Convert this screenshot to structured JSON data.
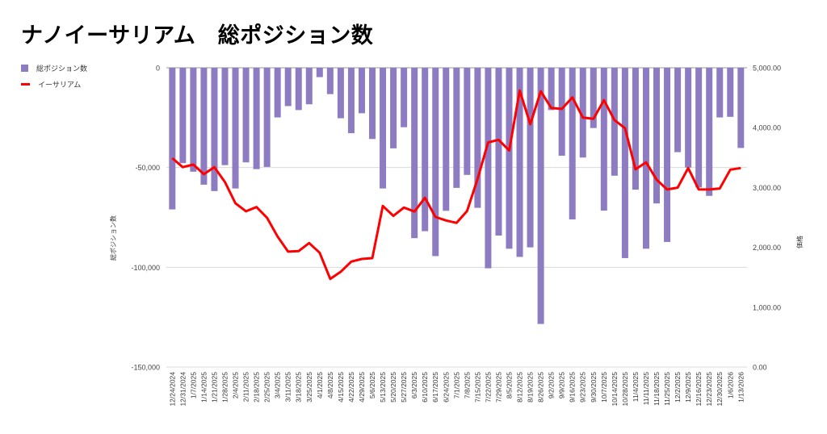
{
  "chart_data": {
    "type": "bar+line",
    "title": "ナノイーサリアム　総ポジション数",
    "legend_position": "top-left",
    "grid": true,
    "categories": [
      "12/24/2024",
      "12/31/2024",
      "1/7/2025",
      "1/14/2025",
      "1/21/2025",
      "1/28/2025",
      "2/4/2025",
      "2/11/2025",
      "2/18/2025",
      "2/25/2025",
      "3/4/2025",
      "3/11/2025",
      "3/18/2025",
      "3/25/2025",
      "4/1/2025",
      "4/8/2025",
      "4/15/2025",
      "4/22/2025",
      "4/29/2025",
      "5/6/2025",
      "5/13/2025",
      "5/20/2025",
      "5/27/2025",
      "6/3/2025",
      "6/10/2025",
      "6/17/2025",
      "6/24/2025",
      "7/1/2025",
      "7/8/2025",
      "7/15/2025",
      "7/22/2025",
      "7/29/2025",
      "8/5/2025",
      "8/12/2025",
      "8/19/2025",
      "8/26/2025",
      "9/2/2025",
      "9/9/2025",
      "9/16/2025",
      "9/23/2025",
      "9/30/2025",
      "10/7/2025",
      "10/14/2025",
      "10/28/2025",
      "11/4/2025",
      "11/11/2025",
      "11/18/2025",
      "11/25/2025",
      "12/2/2025",
      "12/9/2025",
      "12/16/2025",
      "12/23/2025",
      "12/30/2025",
      "1/6/2026",
      "1/13/2026"
    ],
    "series": [
      {
        "name": "総ポジション数",
        "type": "bar",
        "axis": "left",
        "color": "#8e7cc3",
        "values": [
          -71000,
          -47800,
          -52100,
          -58600,
          -61800,
          -48800,
          -60500,
          -47400,
          -50800,
          -49700,
          -24900,
          -19200,
          -21200,
          -18300,
          -4700,
          -13200,
          -25300,
          -32800,
          -22800,
          -35700,
          -60500,
          -40400,
          -29800,
          -85400,
          -81900,
          -94400,
          -71700,
          -60200,
          -53700,
          -70200,
          -100500,
          -84100,
          -90700,
          -94800,
          -90000,
          -128400,
          -21200,
          -44100,
          -76000,
          -45000,
          -30200,
          -71600,
          -54100,
          -95400,
          -61100,
          -90700,
          -68000,
          -87300,
          -42300,
          -50000,
          -60000,
          -64200,
          -24900,
          -24600,
          -40200
        ]
      },
      {
        "name": "イーサリアム",
        "type": "line",
        "axis": "right",
        "color": "#ff0000",
        "values": [
          3491,
          3339,
          3383,
          3222,
          3339,
          3091,
          2736,
          2602,
          2673,
          2494,
          2180,
          1928,
          1937,
          2072,
          1910,
          1473,
          1591,
          1762,
          1806,
          1820,
          2692,
          2525,
          2665,
          2598,
          2827,
          2507,
          2449,
          2409,
          2606,
          3145,
          3752,
          3797,
          3617,
          4620,
          4057,
          4606,
          4327,
          4313,
          4506,
          4169,
          4147,
          4458,
          4125,
          3990,
          3303,
          3420,
          3131,
          2966,
          2997,
          3325,
          2966,
          2966,
          2983,
          3298,
          3325
        ]
      }
    ],
    "left_axis": {
      "label": "総ポジション数",
      "ylim": [
        -150000,
        0
      ],
      "ticks": [
        0,
        -50000,
        -100000,
        -150000
      ],
      "tick_labels": [
        "0",
        "-50,000",
        "-100,000",
        "-150,000"
      ]
    },
    "right_axis": {
      "label": "価格",
      "ylim": [
        0,
        5000
      ],
      "ticks": [
        5000,
        4000,
        3000,
        2000,
        1000,
        0
      ],
      "tick_labels": [
        "5,000.00",
        "4,000.00",
        "3,000.00",
        "2,000.00",
        "1,000.00",
        "0.00"
      ]
    }
  }
}
